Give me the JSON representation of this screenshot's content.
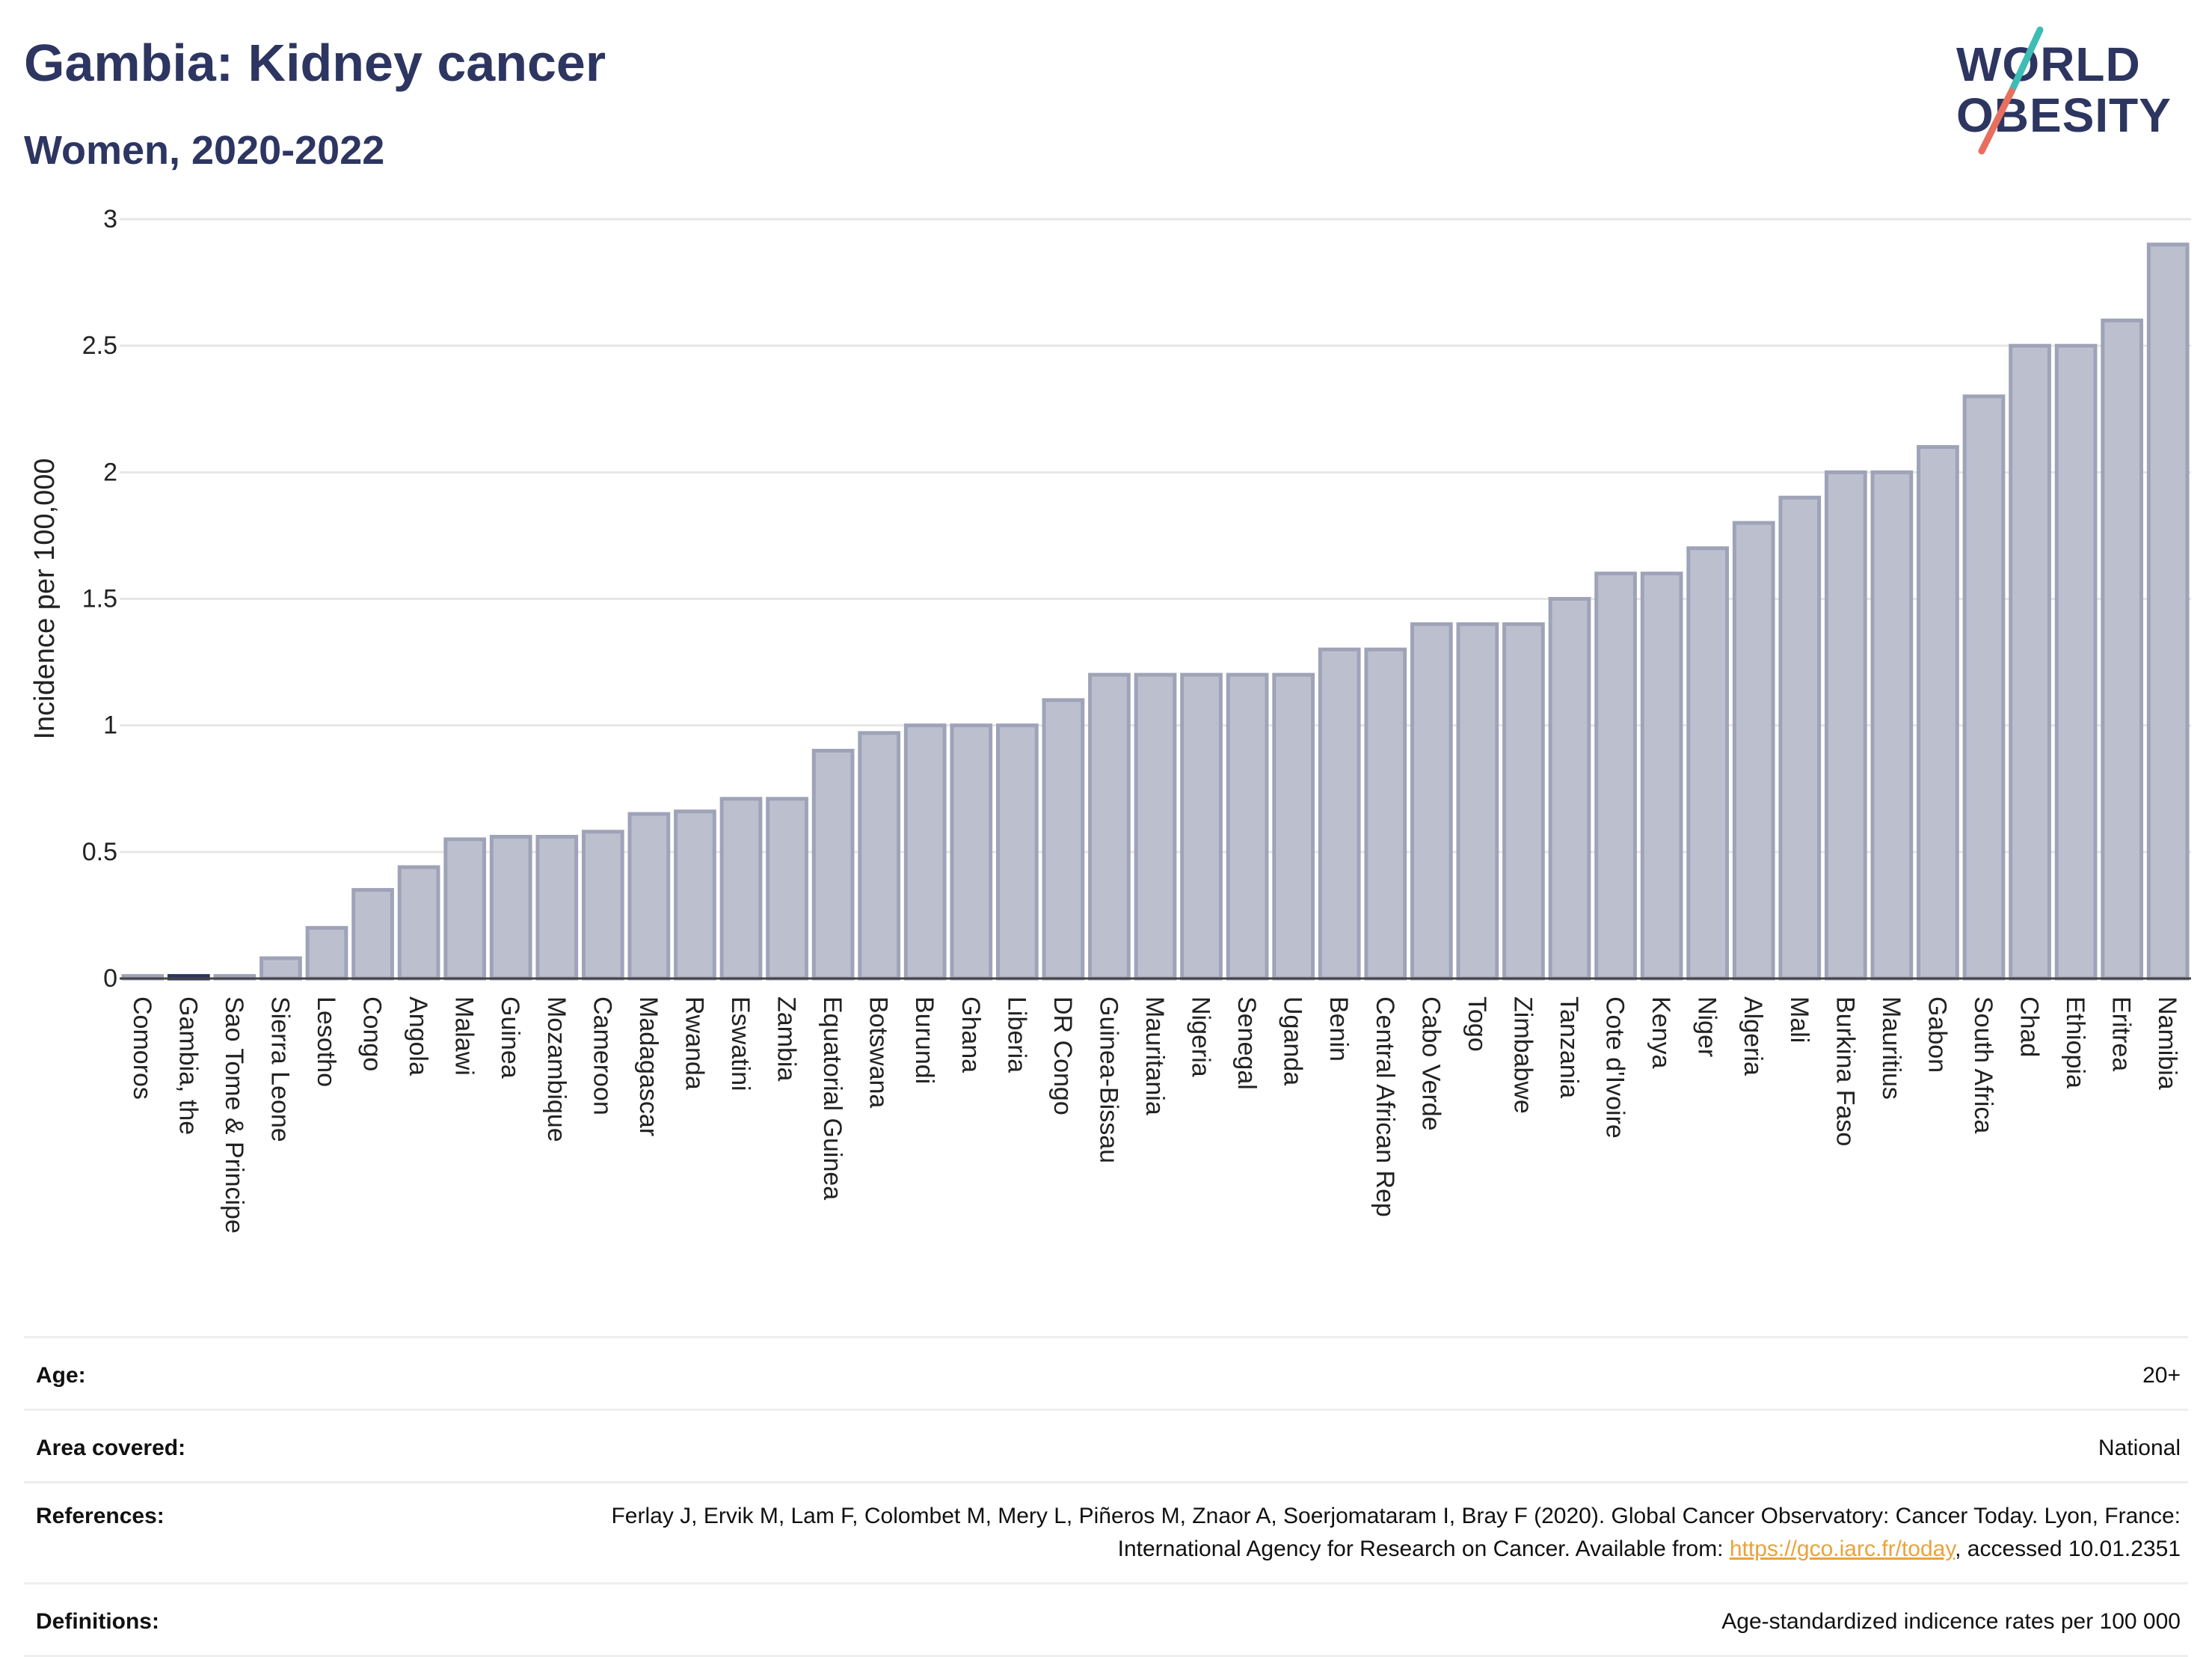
{
  "header": {
    "title": "Gambia: Kidney cancer",
    "subtitle": "Women, 2020-2022"
  },
  "logo": {
    "line1": "WORLD",
    "line2": "OBESITY"
  },
  "colors": {
    "title": "#2d3561",
    "bar_fill": "#bcc0ce",
    "bar_stroke": "#9ea3b8",
    "highlight_bar": "#2d3561",
    "grid": "#e6e6e6",
    "link": "#e8a33d",
    "logo_teal": "#3dbdb5",
    "logo_coral": "#e86f5f"
  },
  "chart_data": {
    "type": "bar",
    "title": "Gambia: Kidney cancer",
    "subtitle": "Women, 2020-2022",
    "ylabel": "Incidence per 100,000",
    "xlabel": "",
    "ylim": [
      0,
      3
    ],
    "yticks": [
      0,
      0.5,
      1,
      1.5,
      2,
      2.5,
      3
    ],
    "grid": true,
    "highlight": "Gambia, the",
    "categories": [
      "Comoros",
      "Gambia, the",
      "Sao Tome & Principe",
      "Sierra Leone",
      "Lesotho",
      "Congo",
      "Angola",
      "Malawi",
      "Guinea",
      "Mozambique",
      "Cameroon",
      "Madagascar",
      "Rwanda",
      "Eswatini",
      "Zambia",
      "Equatorial Guinea",
      "Botswana",
      "Burundi",
      "Ghana",
      "Liberia",
      "DR Congo",
      "Guinea-Bissau",
      "Mauritania",
      "Nigeria",
      "Senegal",
      "Uganda",
      "Benin",
      "Central African Rep",
      "Cabo Verde",
      "Togo",
      "Zimbabwe",
      "Tanzania",
      "Cote d'Ivoire",
      "Kenya",
      "Niger",
      "Algeria",
      "Mali",
      "Burkina Faso",
      "Mauritius",
      "Gabon",
      "South Africa",
      "Chad",
      "Ethiopia",
      "Eritrea",
      "Namibia"
    ],
    "values": [
      0.01,
      0.01,
      0.01,
      0.08,
      0.2,
      0.35,
      0.44,
      0.55,
      0.56,
      0.56,
      0.58,
      0.65,
      0.66,
      0.71,
      0.71,
      0.9,
      0.97,
      1.0,
      1.0,
      1.0,
      1.1,
      1.2,
      1.2,
      1.2,
      1.2,
      1.2,
      1.3,
      1.3,
      1.4,
      1.4,
      1.4,
      1.5,
      1.6,
      1.6,
      1.7,
      1.8,
      1.9,
      2.0,
      2.0,
      2.1,
      2.3,
      2.5,
      2.5,
      2.6,
      2.9
    ]
  },
  "info": {
    "age_label": "Age:",
    "age_value": "20+",
    "area_label": "Area covered:",
    "area_value": "National",
    "references_label": "References:",
    "references_text_1": "Ferlay J, Ervik M, Lam F, Colombet M, Mery L, Piñeros M, Znaor A, Soerjomataram I, Bray F (2020). Global Cancer Observatory: Cancer Today. Lyon, France: International Agency for Research on Cancer. Available from: ",
    "references_link": "https://gco.iarc.fr/today",
    "references_text_2": ", accessed 10.01.2351",
    "definitions_label": "Definitions:",
    "definitions_value": "Age-standardized indicence rates per 100 000"
  }
}
